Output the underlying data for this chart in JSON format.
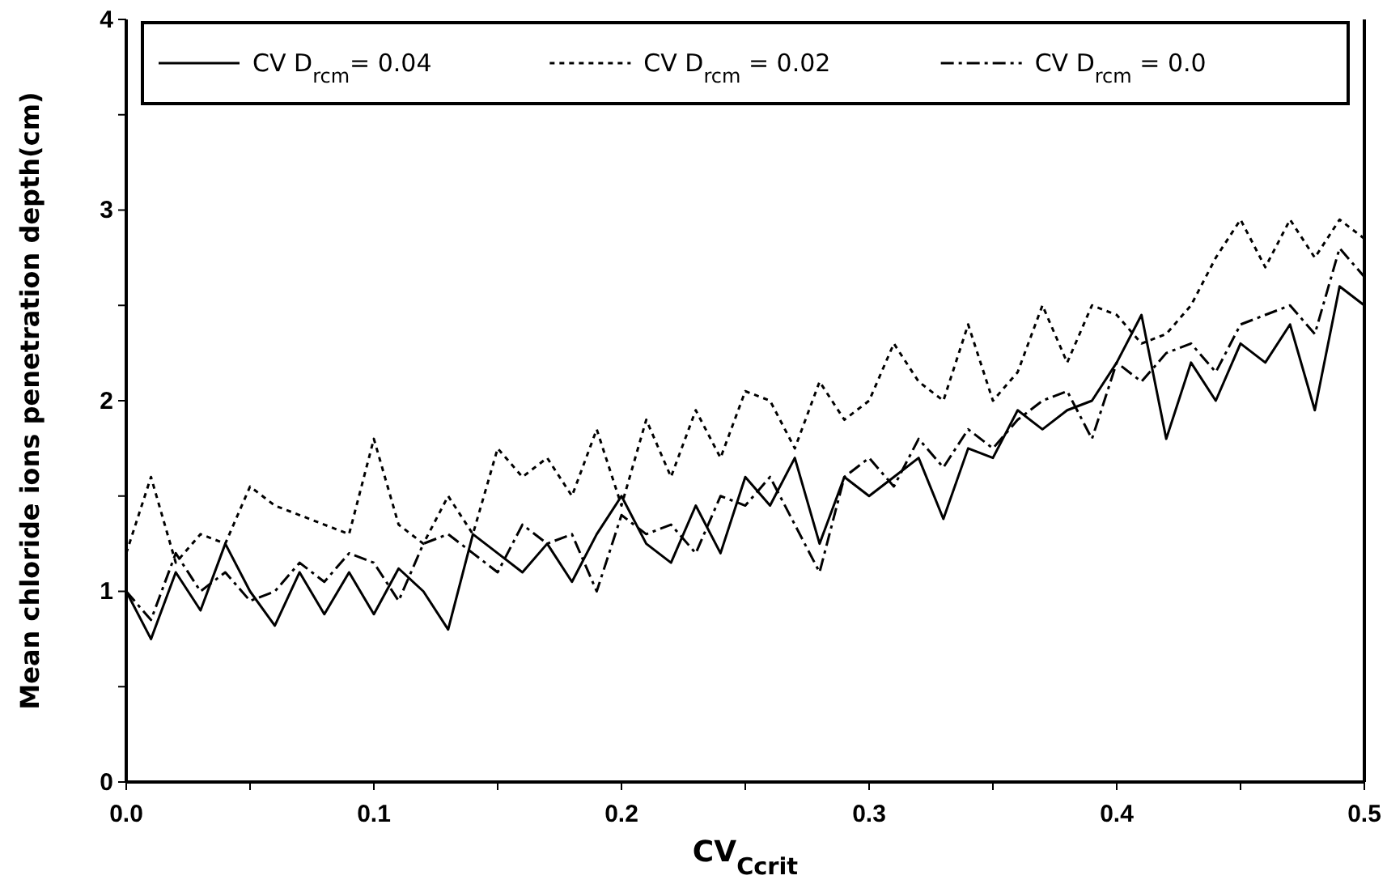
{
  "chart_data": {
    "type": "line",
    "xlabel": "CV$_{Ccrit}$",
    "ylabel": "Mean chloride ions penetration depth(cm)",
    "x": [
      0,
      0.01,
      0.02,
      0.03,
      0.04,
      0.05,
      0.06,
      0.07,
      0.08,
      0.09,
      0.1,
      0.11,
      0.12,
      0.13,
      0.14,
      0.15,
      0.16,
      0.17,
      0.18,
      0.19,
      0.2,
      0.21,
      0.22,
      0.23,
      0.24,
      0.25,
      0.26,
      0.27,
      0.28,
      0.29,
      0.3,
      0.31,
      0.32,
      0.33,
      0.34,
      0.35,
      0.36,
      0.37,
      0.38,
      0.39,
      0.4,
      0.41,
      0.42,
      0.43,
      0.44,
      0.45,
      0.46,
      0.47,
      0.48,
      0.49,
      0.5
    ],
    "series": [
      {
        "name": "CV D$_{rcm}$= 0.04",
        "color": "#000000",
        "line_style": "solid",
        "values": [
          1.0,
          0.75,
          1.1,
          0.9,
          1.25,
          1.0,
          0.82,
          1.1,
          0.88,
          1.1,
          0.88,
          1.12,
          1.0,
          0.8,
          1.3,
          1.2,
          1.1,
          1.25,
          1.05,
          1.3,
          1.5,
          1.25,
          1.15,
          1.45,
          1.2,
          1.6,
          1.45,
          1.7,
          1.25,
          1.6,
          1.5,
          1.6,
          1.7,
          1.38,
          1.75,
          1.7,
          1.95,
          1.85,
          1.95,
          2.0,
          2.2,
          2.45,
          1.8,
          2.2,
          2.0,
          2.3,
          2.2,
          2.4,
          1.95,
          2.6,
          2.5
        ]
      },
      {
        "name": "CV D$_{rcm}$ = 0.02",
        "color": "#000000",
        "line_style": "dotted",
        "values": [
          1.2,
          1.6,
          1.15,
          1.3,
          1.25,
          1.55,
          1.45,
          1.4,
          1.35,
          1.3,
          1.8,
          1.35,
          1.25,
          1.5,
          1.3,
          1.75,
          1.6,
          1.7,
          1.5,
          1.85,
          1.45,
          1.9,
          1.6,
          1.95,
          1.7,
          2.05,
          2.0,
          1.75,
          2.1,
          1.9,
          2.0,
          2.3,
          2.1,
          2.0,
          2.4,
          2.0,
          2.15,
          2.5,
          2.2,
          2.5,
          2.45,
          2.3,
          2.35,
          2.5,
          2.75,
          2.95,
          2.7,
          2.95,
          2.75,
          2.95,
          2.85
        ]
      },
      {
        "name": "CV D$_{rcm}$ = 0.0",
        "color": "#000000",
        "line_style": "dashdot",
        "values": [
          1.0,
          0.85,
          1.2,
          1.0,
          1.1,
          0.95,
          1.0,
          1.15,
          1.05,
          1.2,
          1.15,
          0.95,
          1.25,
          1.3,
          1.2,
          1.1,
          1.35,
          1.25,
          1.3,
          1.0,
          1.4,
          1.3,
          1.35,
          1.2,
          1.5,
          1.45,
          1.6,
          1.35,
          1.1,
          1.6,
          1.7,
          1.55,
          1.8,
          1.65,
          1.85,
          1.75,
          1.9,
          2.0,
          2.05,
          1.8,
          2.2,
          2.1,
          2.25,
          2.3,
          2.15,
          2.4,
          2.45,
          2.5,
          2.35,
          2.8,
          2.65
        ]
      }
    ],
    "xlim": [
      0,
      0.5
    ],
    "xticks": [
      {
        "value": 0,
        "label": "0.0"
      },
      {
        "value": 0.05,
        "label": null
      },
      0.1,
      {
        "value": 0.15,
        "label": null
      },
      0.2,
      {
        "value": 0.25,
        "label": null
      },
      0.3,
      {
        "value": 0.35,
        "label": null
      },
      0.4,
      {
        "value": 0.45,
        "label": null
      },
      0.5
    ],
    "ylim": [
      0,
      4
    ],
    "yticks": [
      0,
      {
        "value": 0.5,
        "label": null
      },
      1,
      {
        "value": 1.5,
        "label": null
      },
      2,
      {
        "value": 2.5,
        "label": null
      },
      3,
      {
        "value": 3.5,
        "label": null
      },
      4
    ],
    "legend": "top",
    "grid": false
  }
}
